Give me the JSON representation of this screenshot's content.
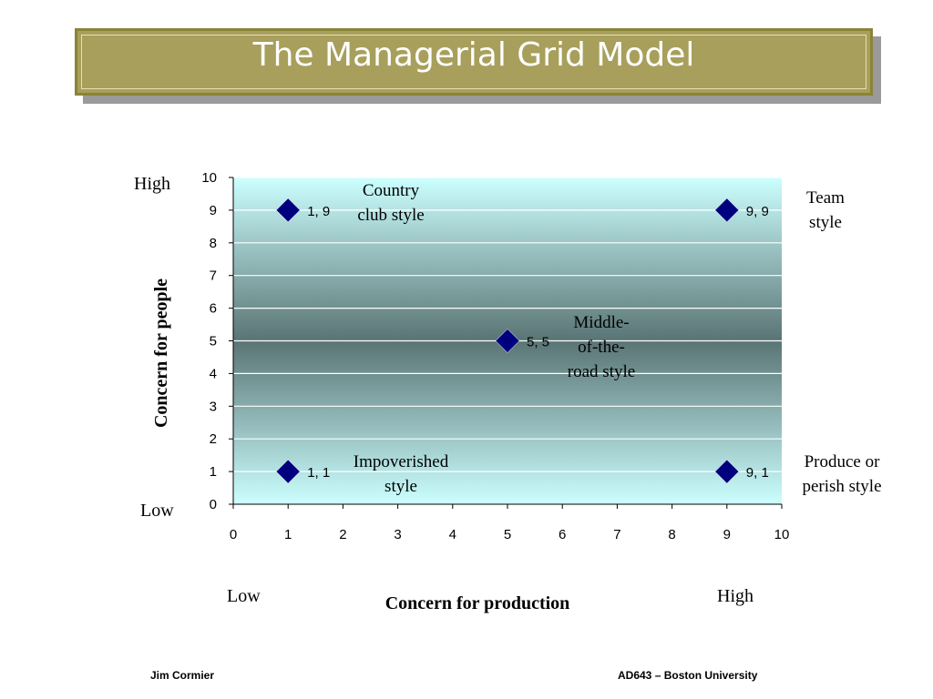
{
  "slide": {
    "title": "The Managerial Grid Model",
    "footer_left": "Jim Cormier",
    "footer_right": "AD643 – Boston University"
  },
  "chart_data": {
    "type": "scatter",
    "title": "",
    "xlabel": "Concern for production",
    "ylabel": "Concern for people",
    "xlim": [
      0,
      10
    ],
    "ylim": [
      0,
      10
    ],
    "x_ticks": [
      "0",
      "1",
      "2",
      "3",
      "4",
      "5",
      "6",
      "7",
      "8",
      "9",
      "10"
    ],
    "y_ticks": [
      "0",
      "1",
      "2",
      "3",
      "4",
      "5",
      "6",
      "7",
      "8",
      "9",
      "10"
    ],
    "grid": "horizontal",
    "x_low_label": "Low",
    "x_high_label": "High",
    "y_low_label": "Low",
    "y_high_label": "High",
    "points": [
      {
        "x": 1,
        "y": 9,
        "label": "1, 9"
      },
      {
        "x": 9,
        "y": 9,
        "label": "9, 9"
      },
      {
        "x": 5,
        "y": 5,
        "label": "5, 5"
      },
      {
        "x": 1,
        "y": 1,
        "label": "1, 1"
      },
      {
        "x": 9,
        "y": 1,
        "label": "9, 1"
      }
    ],
    "marker_color": "#00007f",
    "annotations": [
      {
        "name": "country-club",
        "lines": [
          "Country",
          "club style"
        ]
      },
      {
        "name": "team",
        "lines": [
          "Team",
          "style"
        ]
      },
      {
        "name": "middle-of-the-road",
        "lines": [
          "Middle-",
          "of-the-",
          "road style"
        ]
      },
      {
        "name": "impoverished",
        "lines": [
          "Impoverished",
          "style"
        ]
      },
      {
        "name": "produce-or-perish",
        "lines": [
          "Produce or",
          "perish style"
        ]
      }
    ]
  }
}
